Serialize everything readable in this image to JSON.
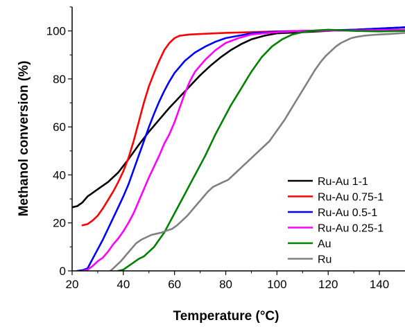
{
  "chart_data": {
    "type": "line",
    "xlabel": "Temperature (°C)",
    "ylabel": "Methanol conversion (%)",
    "xlim": [
      20,
      150
    ],
    "ylim": [
      0,
      110
    ],
    "x_ticks": [
      20,
      40,
      60,
      80,
      100,
      120,
      140
    ],
    "y_ticks": [
      0,
      20,
      40,
      60,
      80,
      100
    ],
    "grid": false,
    "legend_position": "bottom-right",
    "series": [
      {
        "name": "Ru-Au 1-1",
        "color": "#000000",
        "points": [
          [
            20,
            26.5
          ],
          [
            22,
            27
          ],
          [
            24,
            28.5
          ],
          [
            26,
            31
          ],
          [
            30,
            34
          ],
          [
            34,
            37
          ],
          [
            38,
            41
          ],
          [
            42,
            46.5
          ],
          [
            46,
            52.5
          ],
          [
            50,
            58
          ],
          [
            54,
            63
          ],
          [
            58,
            68
          ],
          [
            62,
            72.5
          ],
          [
            66,
            77
          ],
          [
            70,
            81.5
          ],
          [
            74,
            85.5
          ],
          [
            78,
            89
          ],
          [
            82,
            92
          ],
          [
            86,
            94.5
          ],
          [
            90,
            96.5
          ],
          [
            95,
            98
          ],
          [
            100,
            99
          ],
          [
            110,
            99.5
          ],
          [
            120,
            100
          ],
          [
            130,
            100.5
          ],
          [
            140,
            101
          ],
          [
            150,
            101.5
          ]
        ]
      },
      {
        "name": "Ru-Au 0.75-1",
        "color": "#ff0000",
        "points": [
          [
            24,
            19
          ],
          [
            26,
            19.5
          ],
          [
            28,
            21
          ],
          [
            30,
            23
          ],
          [
            32,
            26
          ],
          [
            34,
            29.5
          ],
          [
            36,
            33
          ],
          [
            38,
            37
          ],
          [
            40,
            41.5
          ],
          [
            42,
            47
          ],
          [
            44,
            54
          ],
          [
            46,
            62
          ],
          [
            48,
            70
          ],
          [
            50,
            77
          ],
          [
            52,
            82.5
          ],
          [
            54,
            87.5
          ],
          [
            56,
            92
          ],
          [
            58,
            95
          ],
          [
            60,
            97
          ],
          [
            62,
            98
          ],
          [
            66,
            98.5
          ],
          [
            70,
            98.7
          ],
          [
            80,
            99.2
          ],
          [
            90,
            99.5
          ],
          [
            100,
            99.8
          ],
          [
            110,
            100
          ],
          [
            130,
            100.2
          ],
          [
            150,
            100.5
          ]
        ]
      },
      {
        "name": "Ru-Au 0.5-1",
        "color": "#0000ff",
        "points": [
          [
            22,
            0
          ],
          [
            24,
            0.3
          ],
          [
            26,
            1
          ],
          [
            28,
            5
          ],
          [
            30,
            9
          ],
          [
            32,
            13
          ],
          [
            34,
            17.5
          ],
          [
            36,
            22
          ],
          [
            38,
            26.5
          ],
          [
            40,
            31
          ],
          [
            42,
            36
          ],
          [
            44,
            42
          ],
          [
            46,
            48
          ],
          [
            48,
            54
          ],
          [
            50,
            60
          ],
          [
            52,
            65.5
          ],
          [
            54,
            70.5
          ],
          [
            56,
            75
          ],
          [
            58,
            79
          ],
          [
            60,
            82.5
          ],
          [
            64,
            87.5
          ],
          [
            68,
            91
          ],
          [
            72,
            93.5
          ],
          [
            76,
            95.5
          ],
          [
            80,
            97
          ],
          [
            90,
            99
          ],
          [
            100,
            99.7
          ],
          [
            110,
            100
          ],
          [
            130,
            100.5
          ],
          [
            150,
            101.5
          ]
        ]
      },
      {
        "name": "Ru-Au 0.25-1",
        "color": "#ff00ff",
        "points": [
          [
            24,
            0
          ],
          [
            26,
            0.5
          ],
          [
            28,
            2
          ],
          [
            30,
            4
          ],
          [
            32,
            5.5
          ],
          [
            34,
            8
          ],
          [
            36,
            11
          ],
          [
            38,
            13.5
          ],
          [
            40,
            16.5
          ],
          [
            42,
            20
          ],
          [
            44,
            24
          ],
          [
            46,
            29
          ],
          [
            48,
            34
          ],
          [
            50,
            39
          ],
          [
            52,
            43.5
          ],
          [
            54,
            48
          ],
          [
            56,
            53
          ],
          [
            58,
            57
          ],
          [
            60,
            62
          ],
          [
            62,
            68
          ],
          [
            64,
            74
          ],
          [
            66,
            79
          ],
          [
            68,
            83
          ],
          [
            72,
            88
          ],
          [
            76,
            92
          ],
          [
            80,
            95
          ],
          [
            85,
            97
          ],
          [
            90,
            98.5
          ],
          [
            100,
            99.5
          ],
          [
            110,
            100
          ],
          [
            130,
            100.2
          ],
          [
            150,
            100.5
          ]
        ]
      },
      {
        "name": "Au",
        "color": "#008000",
        "points": [
          [
            38,
            0
          ],
          [
            40,
            0.5
          ],
          [
            42,
            2
          ],
          [
            44,
            3.5
          ],
          [
            46,
            5
          ],
          [
            48,
            6
          ],
          [
            50,
            8
          ],
          [
            52,
            10
          ],
          [
            54,
            13
          ],
          [
            56,
            16
          ],
          [
            58,
            20
          ],
          [
            60,
            24
          ],
          [
            62,
            28
          ],
          [
            64,
            32
          ],
          [
            66,
            36
          ],
          [
            68,
            40
          ],
          [
            70,
            44
          ],
          [
            72,
            48
          ],
          [
            74,
            52.5
          ],
          [
            76,
            57
          ],
          [
            78,
            61
          ],
          [
            80,
            65
          ],
          [
            82,
            69
          ],
          [
            84,
            72.5
          ],
          [
            86,
            76
          ],
          [
            88,
            79.5
          ],
          [
            90,
            83
          ],
          [
            94,
            89
          ],
          [
            98,
            93.5
          ],
          [
            102,
            96.5
          ],
          [
            106,
            98.5
          ],
          [
            110,
            99.5
          ],
          [
            115,
            100.2
          ],
          [
            120,
            100.5
          ],
          [
            125,
            100.3
          ],
          [
            130,
            100
          ],
          [
            140,
            99.8
          ],
          [
            150,
            100
          ]
        ]
      },
      {
        "name": "Ru",
        "color": "#808080",
        "points": [
          [
            35,
            0
          ],
          [
            37,
            2
          ],
          [
            39,
            4
          ],
          [
            41,
            6.5
          ],
          [
            43,
            9
          ],
          [
            45,
            11.5
          ],
          [
            47,
            13
          ],
          [
            49,
            14
          ],
          [
            51,
            15
          ],
          [
            53,
            15.5
          ],
          [
            55,
            16
          ],
          [
            57,
            16.8
          ],
          [
            59,
            17.5
          ],
          [
            61,
            19
          ],
          [
            63,
            21
          ],
          [
            65,
            23
          ],
          [
            67,
            25.5
          ],
          [
            69,
            28
          ],
          [
            71,
            30.5
          ],
          [
            73,
            33
          ],
          [
            75,
            35
          ],
          [
            77,
            36
          ],
          [
            79,
            37
          ],
          [
            81,
            38
          ],
          [
            83,
            40
          ],
          [
            85,
            42
          ],
          [
            87,
            44
          ],
          [
            89,
            46
          ],
          [
            91,
            48
          ],
          [
            93,
            50
          ],
          [
            95,
            52
          ],
          [
            97,
            54
          ],
          [
            99,
            57
          ],
          [
            101,
            60
          ],
          [
            103,
            63
          ],
          [
            105,
            66.5
          ],
          [
            107,
            70
          ],
          [
            109,
            73.5
          ],
          [
            111,
            77
          ],
          [
            113,
            80.5
          ],
          [
            115,
            84
          ],
          [
            117,
            87
          ],
          [
            119,
            89.5
          ],
          [
            121,
            91.5
          ],
          [
            123,
            93.5
          ],
          [
            125,
            95
          ],
          [
            127,
            96
          ],
          [
            129,
            97
          ],
          [
            131,
            97.5
          ],
          [
            134,
            98
          ],
          [
            137,
            98.3
          ],
          [
            140,
            98.5
          ],
          [
            145,
            98.8
          ],
          [
            150,
            99.2
          ]
        ]
      }
    ]
  }
}
